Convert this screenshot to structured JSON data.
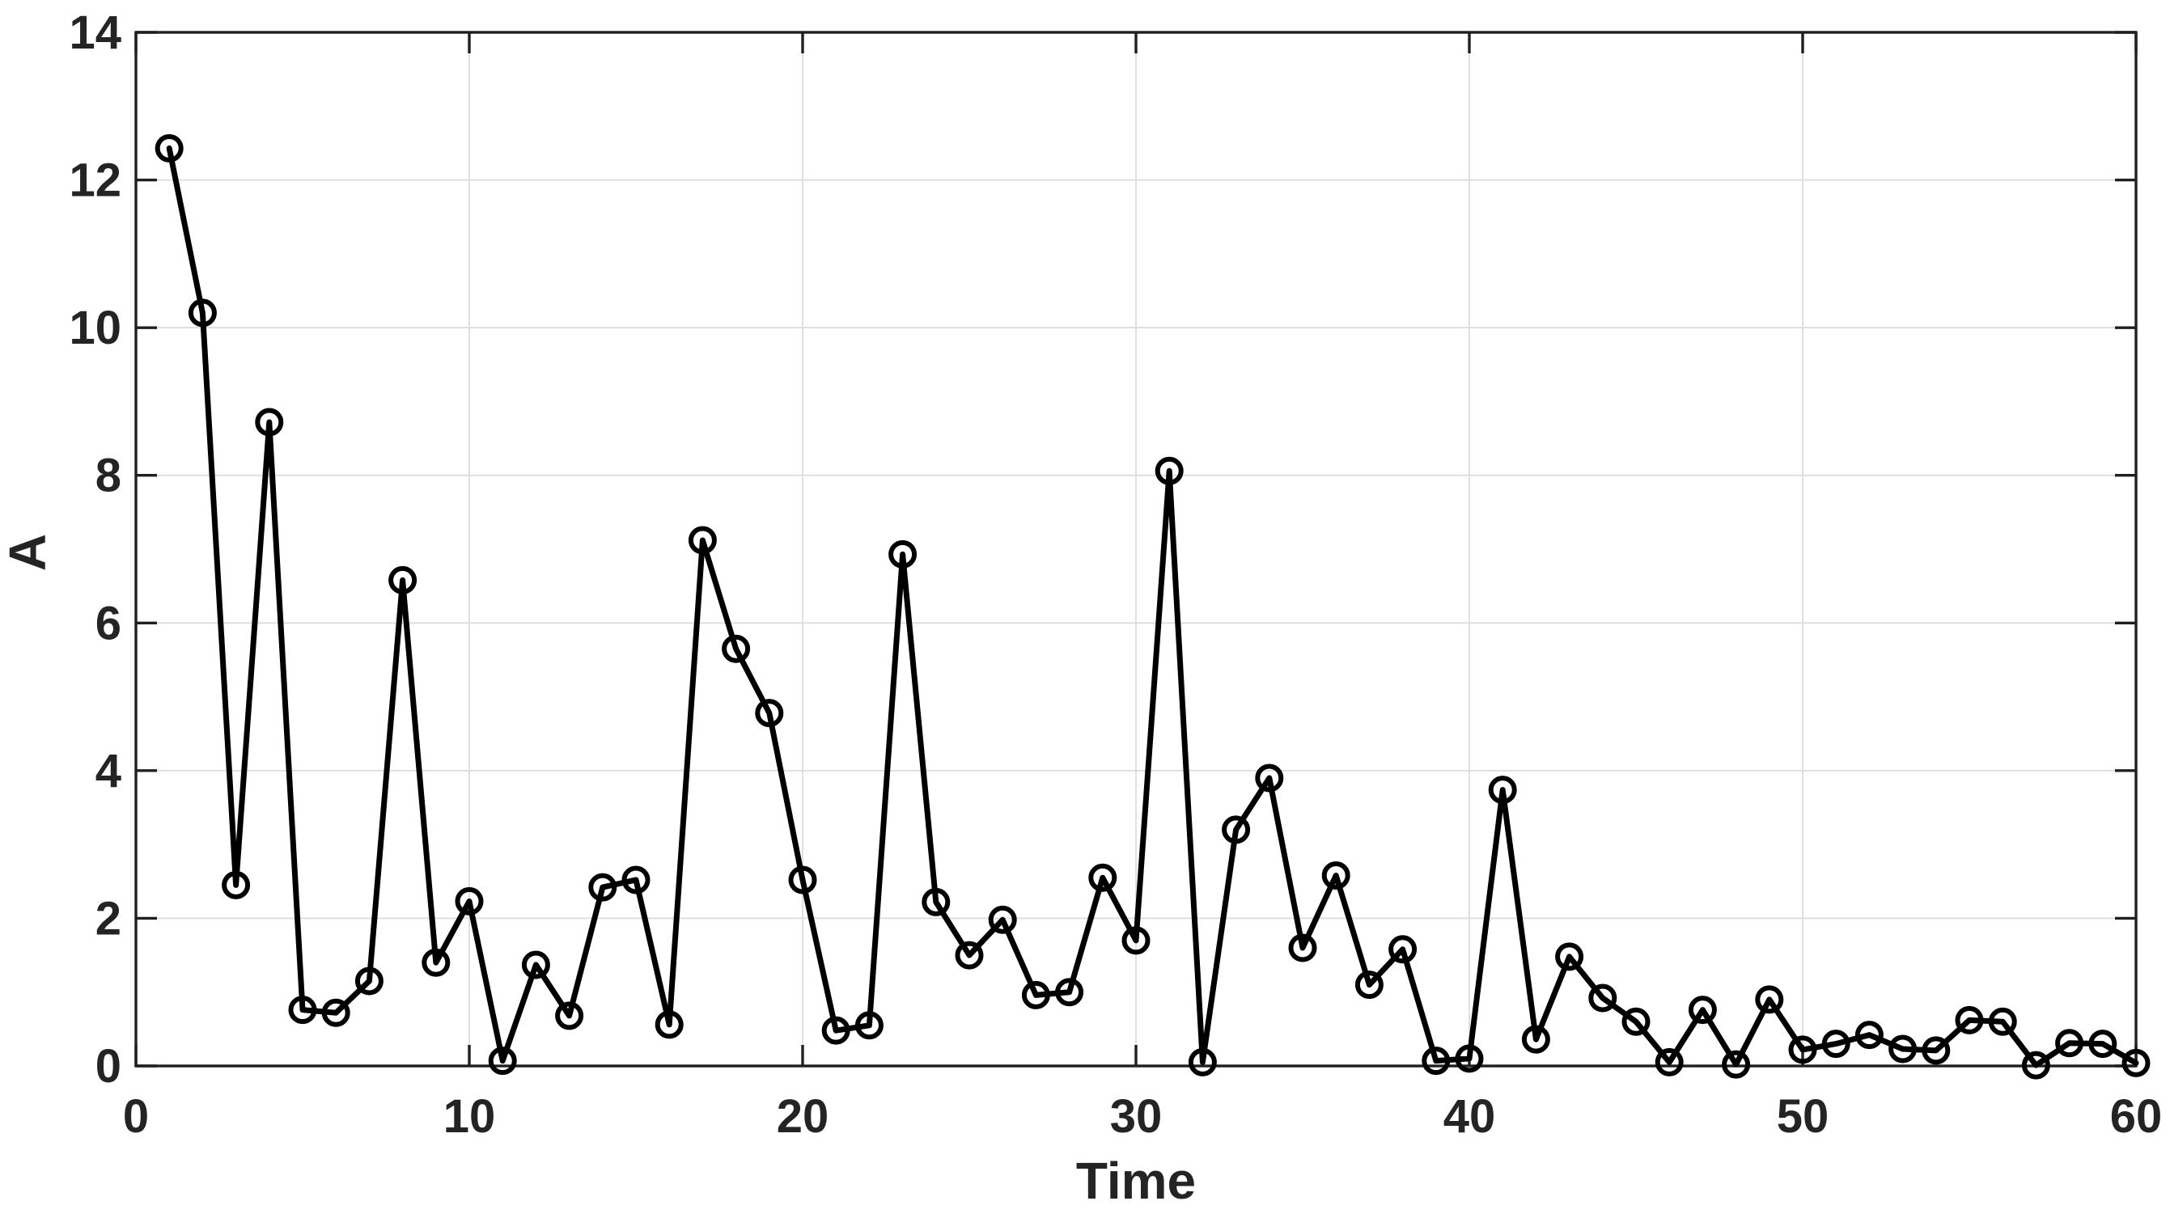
{
  "figure": {
    "background_color": "#ffffff",
    "axes_box_color": "#1f1f1f",
    "grid_color": "#dcdcdc",
    "tick_color": "#1f1f1f",
    "text_color": "#242424",
    "line_color": "#000000"
  },
  "chart_data": {
    "type": "line",
    "title": "",
    "xlabel": "Time",
    "ylabel": "A",
    "xlim": [
      0,
      60
    ],
    "ylim": [
      0,
      14
    ],
    "xticks": [
      0,
      10,
      20,
      30,
      40,
      50,
      60
    ],
    "yticks": [
      0,
      2,
      4,
      6,
      8,
      10,
      12,
      14
    ],
    "grid": true,
    "legend_position": "none",
    "marker": "open-circle",
    "series": [
      {
        "name": "A",
        "x": [
          1,
          2,
          3,
          4,
          5,
          6,
          7,
          8,
          9,
          10,
          11,
          12,
          13,
          14,
          15,
          16,
          17,
          18,
          19,
          20,
          21,
          22,
          23,
          24,
          25,
          26,
          27,
          28,
          29,
          30,
          31,
          32,
          33,
          34,
          35,
          36,
          37,
          38,
          39,
          40,
          41,
          42,
          43,
          44,
          45,
          46,
          47,
          48,
          49,
          50,
          51,
          52,
          53,
          54,
          55,
          56,
          57,
          58,
          59,
          60
        ],
        "values": [
          12.43,
          10.2,
          2.45,
          8.72,
          0.76,
          0.72,
          1.15,
          6.58,
          1.4,
          2.23,
          0.07,
          1.37,
          0.68,
          2.42,
          2.52,
          0.56,
          7.12,
          5.65,
          4.78,
          2.52,
          0.48,
          0.55,
          6.93,
          2.22,
          1.5,
          1.98,
          0.96,
          1.0,
          2.55,
          1.7,
          8.06,
          0.05,
          3.2,
          3.9,
          1.6,
          2.58,
          1.1,
          1.58,
          0.07,
          0.1,
          3.74,
          0.36,
          1.48,
          0.92,
          0.6,
          0.05,
          0.76,
          0.02,
          0.9,
          0.22,
          0.3,
          0.42,
          0.23,
          0.21,
          0.62,
          0.6,
          0.01,
          0.31,
          0.3,
          0.04
        ]
      }
    ]
  }
}
